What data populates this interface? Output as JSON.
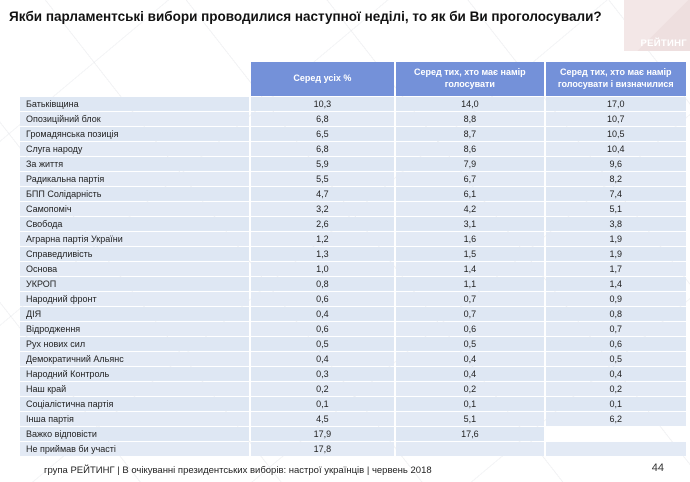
{
  "title": "Якби парламентські вибори проводилися наступної неділі, то як би Ви проголосували?",
  "logo": {
    "text": "РЕЙТИНГ"
  },
  "footer": {
    "source": "група РЕЙТИНГ  | В очікуванні президентських виборів: настрої українців |  червень 2018",
    "page": "44"
  },
  "colors": {
    "header_bg": "#7491d9",
    "header_text": "#ffffff",
    "row_bg": "#dee7f3",
    "row_bg_alt": "#e3eaf5",
    "logo_bg": "#f3e7e7"
  },
  "chart_data": {
    "type": "table",
    "title": "Якби парламентські вибори проводилися наступної неділі, то як би Ви проголосували?",
    "columns": [
      "Серед усіх %",
      "Серед тих, хто має намір голосувати",
      "Серед тих, хто має намір голосувати і визначилися"
    ],
    "rows": [
      {
        "label": "Батьківщина",
        "values": [
          "10,3",
          "14,0",
          "17,0"
        ]
      },
      {
        "label": "Опозиційний блок",
        "values": [
          "6,8",
          "8,8",
          "10,7"
        ]
      },
      {
        "label": "Громадянська позиція",
        "values": [
          "6,5",
          "8,7",
          "10,5"
        ]
      },
      {
        "label": "Слуга народу",
        "values": [
          "6,8",
          "8,6",
          "10,4"
        ]
      },
      {
        "label": "За життя",
        "values": [
          "5,9",
          "7,9",
          "9,6"
        ]
      },
      {
        "label": "Радикальна партія",
        "values": [
          "5,5",
          "6,7",
          "8,2"
        ]
      },
      {
        "label": "БПП Солідарність",
        "values": [
          "4,7",
          "6,1",
          "7,4"
        ]
      },
      {
        "label": "Самопоміч",
        "values": [
          "3,2",
          "4,2",
          "5,1"
        ]
      },
      {
        "label": "Свобода",
        "values": [
          "2,6",
          "3,1",
          "3,8"
        ]
      },
      {
        "label": "Аграрна партія України",
        "values": [
          "1,2",
          "1,6",
          "1,9"
        ]
      },
      {
        "label": "Справедливість",
        "values": [
          "1,3",
          "1,5",
          "1,9"
        ]
      },
      {
        "label": "Основа",
        "values": [
          "1,0",
          "1,4",
          "1,7"
        ]
      },
      {
        "label": "УКРОП",
        "values": [
          "0,8",
          "1,1",
          "1,4"
        ]
      },
      {
        "label": "Народний фронт",
        "values": [
          "0,6",
          "0,7",
          "0,9"
        ]
      },
      {
        "label": "ДІЯ",
        "values": [
          "0,4",
          "0,7",
          "0,8"
        ]
      },
      {
        "label": "Відродження",
        "values": [
          "0,6",
          "0,6",
          "0,7"
        ]
      },
      {
        "label": "Рух нових сил",
        "values": [
          "0,5",
          "0,5",
          "0,6"
        ]
      },
      {
        "label": "Демократичний Альянс",
        "values": [
          "0,4",
          "0,4",
          "0,5"
        ]
      },
      {
        "label": "Народний Контроль",
        "values": [
          "0,3",
          "0,4",
          "0,4"
        ]
      },
      {
        "label": "Наш край",
        "values": [
          "0,2",
          "0,2",
          "0,2"
        ]
      },
      {
        "label": "Соціалістична партія",
        "values": [
          "0,1",
          "0,1",
          "0,1"
        ]
      },
      {
        "label": "Інша партія",
        "values": [
          "4,5",
          "5,1",
          "6,2"
        ]
      },
      {
        "label": "Важко відповісти",
        "values": [
          "17,9",
          "17,6",
          null
        ]
      },
      {
        "label": "Не приймав би участі",
        "values": [
          "17,8",
          null,
          null
        ]
      }
    ]
  }
}
